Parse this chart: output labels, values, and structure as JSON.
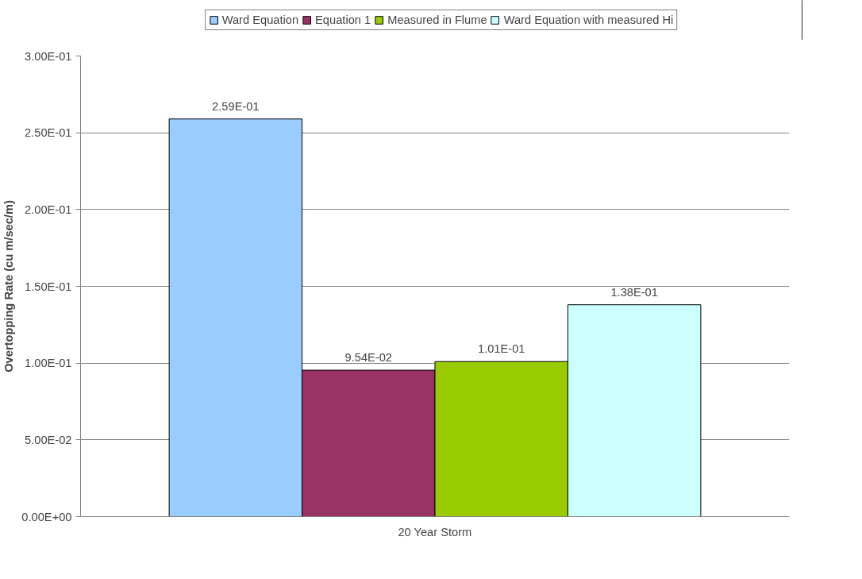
{
  "chart_data": {
    "type": "bar",
    "ylabel": "Overtopping Rate (cu m/sec/m)",
    "categories": [
      "20 Year Storm"
    ],
    "series": [
      {
        "name": "Ward Equation",
        "color": "#99ccff",
        "values": [
          0.259
        ],
        "value_labels": [
          "2.59E-01"
        ]
      },
      {
        "name": "Equation 1",
        "color": "#993366",
        "values": [
          0.0954
        ],
        "value_labels": [
          "9.54E-02"
        ]
      },
      {
        "name": "Measured in Flume",
        "color": "#99cc00",
        "values": [
          0.101
        ],
        "value_labels": [
          "1.01E-01"
        ]
      },
      {
        "name": "Ward Equation with measured Hi",
        "color": "#ccffff",
        "values": [
          0.138
        ],
        "value_labels": [
          "1.38E-01"
        ]
      }
    ],
    "ylim": [
      0,
      0.3
    ],
    "yticks": [
      {
        "value": 0,
        "label": "0.00E+00"
      },
      {
        "value": 0.05,
        "label": "5.00E-02"
      },
      {
        "value": 0.1,
        "label": "1.00E-01"
      },
      {
        "value": 0.15,
        "label": "1.50E-01"
      },
      {
        "value": 0.2,
        "label": "2.00E-01"
      },
      {
        "value": 0.25,
        "label": "2.50E-01"
      },
      {
        "value": 0.3,
        "label": "3.00E-01"
      }
    ],
    "grid": "y",
    "legend": "top"
  }
}
